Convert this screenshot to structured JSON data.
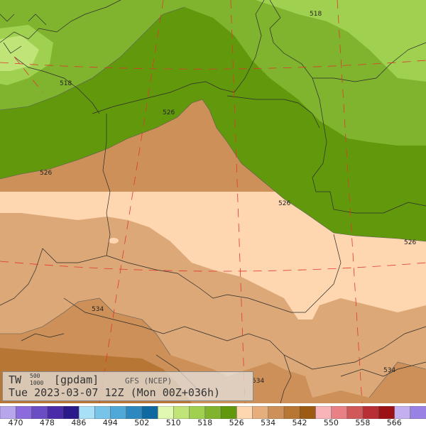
{
  "map": {
    "field_label": "TW",
    "field_superscript": "500",
    "field_subscript": "1000",
    "unit": "[gpdam]",
    "model": "GFS (NCEP)",
    "valid_time": "Tue 2023-03-07 12Z (Mon 00Z+036h)"
  },
  "contour_labels": [
    "518",
    "518",
    "526",
    "526",
    "526",
    "526",
    "534",
    "534",
    "534"
  ],
  "legend": {
    "colors": [
      "#b8a6ec",
      "#8c6cdc",
      "#6a4cc4",
      "#4a2ca8",
      "#2a1a8a",
      "#a8e0f8",
      "#78c4e8",
      "#50a8d8",
      "#2e88c0",
      "#1068a0",
      "#e0f8b0",
      "#c0e478",
      "#a0d050",
      "#80b42e",
      "#62990c",
      "#fed6b0",
      "#e6ae7c",
      "#cc9058",
      "#b87634",
      "#9c5a12",
      "#f8b4b8",
      "#e88086",
      "#d05858",
      "#b82e34",
      "#9c1214",
      "#c4b0f0",
      "#9a82e4"
    ],
    "labels": [
      "470",
      "478",
      "486",
      "494",
      "502",
      "510",
      "518",
      "526",
      "534",
      "542",
      "550",
      "558",
      "566"
    ]
  }
}
